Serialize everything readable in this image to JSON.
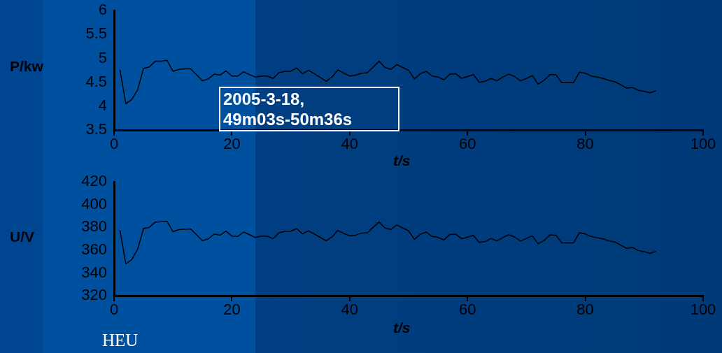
{
  "chart_data": [
    {
      "type": "line",
      "ylabel": "P/kw",
      "xlabel": "t/s",
      "color": "#000000",
      "xlim": [
        0,
        100
      ],
      "xticks": [
        0,
        20,
        40,
        60,
        80,
        100
      ],
      "ylim": [
        3.5,
        6
      ],
      "yticks": [
        3.5,
        4,
        4.5,
        5,
        5.5,
        6
      ],
      "annotations": [
        "2005-3-18,\n49m03s-50m36s"
      ],
      "x": [
        1,
        2,
        3,
        4,
        5,
        6,
        7,
        8,
        9,
        10,
        11,
        12,
        13,
        14,
        15,
        16,
        17,
        18,
        19,
        20,
        21,
        22,
        23,
        24,
        25,
        26,
        27,
        28,
        29,
        30,
        31,
        32,
        33,
        34,
        35,
        36,
        37,
        38,
        39,
        40,
        41,
        42,
        43,
        44,
        45,
        46,
        47,
        48,
        49,
        50,
        51,
        52,
        53,
        54,
        55,
        56,
        57,
        58,
        59,
        60,
        61,
        62,
        63,
        64,
        65,
        66,
        67,
        68,
        69,
        70,
        71,
        72,
        73,
        74,
        75,
        76,
        77,
        78,
        79,
        80,
        81,
        82,
        83,
        84,
        85,
        86,
        87,
        88,
        89,
        90,
        91,
        92
      ],
      "values": [
        4.76,
        4.05,
        4.14,
        4.34,
        4.79,
        4.82,
        4.94,
        4.94,
        4.96,
        4.73,
        4.77,
        4.78,
        4.78,
        4.66,
        4.53,
        4.57,
        4.67,
        4.65,
        4.74,
        4.63,
        4.63,
        4.72,
        4.66,
        4.61,
        4.63,
        4.63,
        4.58,
        4.7,
        4.73,
        4.73,
        4.8,
        4.68,
        4.75,
        4.68,
        4.6,
        4.52,
        4.61,
        4.76,
        4.69,
        4.63,
        4.65,
        4.69,
        4.7,
        4.82,
        4.94,
        4.81,
        4.77,
        4.87,
        4.81,
        4.75,
        4.57,
        4.68,
        4.73,
        4.63,
        4.61,
        4.55,
        4.67,
        4.68,
        4.58,
        4.62,
        4.66,
        4.5,
        4.52,
        4.58,
        4.53,
        4.61,
        4.67,
        4.62,
        4.53,
        4.58,
        4.64,
        4.46,
        4.54,
        4.66,
        4.66,
        4.49,
        4.49,
        4.49,
        4.71,
        4.69,
        4.63,
        4.61,
        4.58,
        4.54,
        4.51,
        4.45,
        4.38,
        4.39,
        4.33,
        4.31,
        4.28,
        4.32
      ]
    },
    {
      "type": "line",
      "ylabel": "U/V",
      "xlabel": "t/s",
      "color": "#000000",
      "xlim": [
        0,
        100
      ],
      "xticks": [
        0,
        20,
        40,
        60,
        80,
        100
      ],
      "ylim": [
        320,
        420
      ],
      "yticks": [
        320,
        340,
        360,
        380,
        400,
        420
      ],
      "annotations": [
        "HEU"
      ],
      "x": [
        1,
        2,
        3,
        4,
        5,
        6,
        7,
        8,
        9,
        10,
        11,
        12,
        13,
        14,
        15,
        16,
        17,
        18,
        19,
        20,
        21,
        22,
        23,
        24,
        25,
        26,
        27,
        28,
        29,
        30,
        31,
        32,
        33,
        34,
        35,
        36,
        37,
        38,
        39,
        40,
        41,
        42,
        43,
        44,
        45,
        46,
        47,
        48,
        49,
        50,
        51,
        52,
        53,
        54,
        55,
        56,
        57,
        58,
        59,
        60,
        61,
        62,
        63,
        64,
        65,
        66,
        67,
        68,
        69,
        70,
        71,
        72,
        73,
        74,
        75,
        76,
        77,
        78,
        79,
        80,
        81,
        82,
        83,
        84,
        85,
        86,
        87,
        88,
        89,
        90,
        91,
        92
      ],
      "values": [
        377.6,
        348.1,
        351.6,
        360.7,
        379,
        380.1,
        384.7,
        384.9,
        385.3,
        376.3,
        378,
        378.4,
        378.6,
        373.6,
        368.4,
        369.9,
        374.2,
        373.2,
        376.7,
        372.4,
        372.2,
        375.9,
        373.6,
        371.1,
        372.4,
        372.4,
        370.1,
        375.3,
        376.5,
        376.7,
        379,
        374.3,
        377,
        374.2,
        371.3,
        368.2,
        371.6,
        377.4,
        374.7,
        372.6,
        373.2,
        374.9,
        375.3,
        380.1,
        384.7,
        379.4,
        378.2,
        382.2,
        379.5,
        377,
        369.5,
        374,
        375.9,
        372,
        371.3,
        369,
        373.8,
        374,
        370.1,
        371.5,
        373,
        366.8,
        367.6,
        370.3,
        368.2,
        371.1,
        373.6,
        371.6,
        368,
        370.3,
        372.6,
        365.5,
        368.6,
        373.4,
        373.2,
        366.4,
        366.4,
        366.4,
        375.3,
        374.3,
        372,
        370.9,
        369.9,
        368.2,
        367.2,
        364.5,
        361.6,
        362.4,
        359.7,
        358.7,
        357.2,
        359.1
      ]
    }
  ]
}
